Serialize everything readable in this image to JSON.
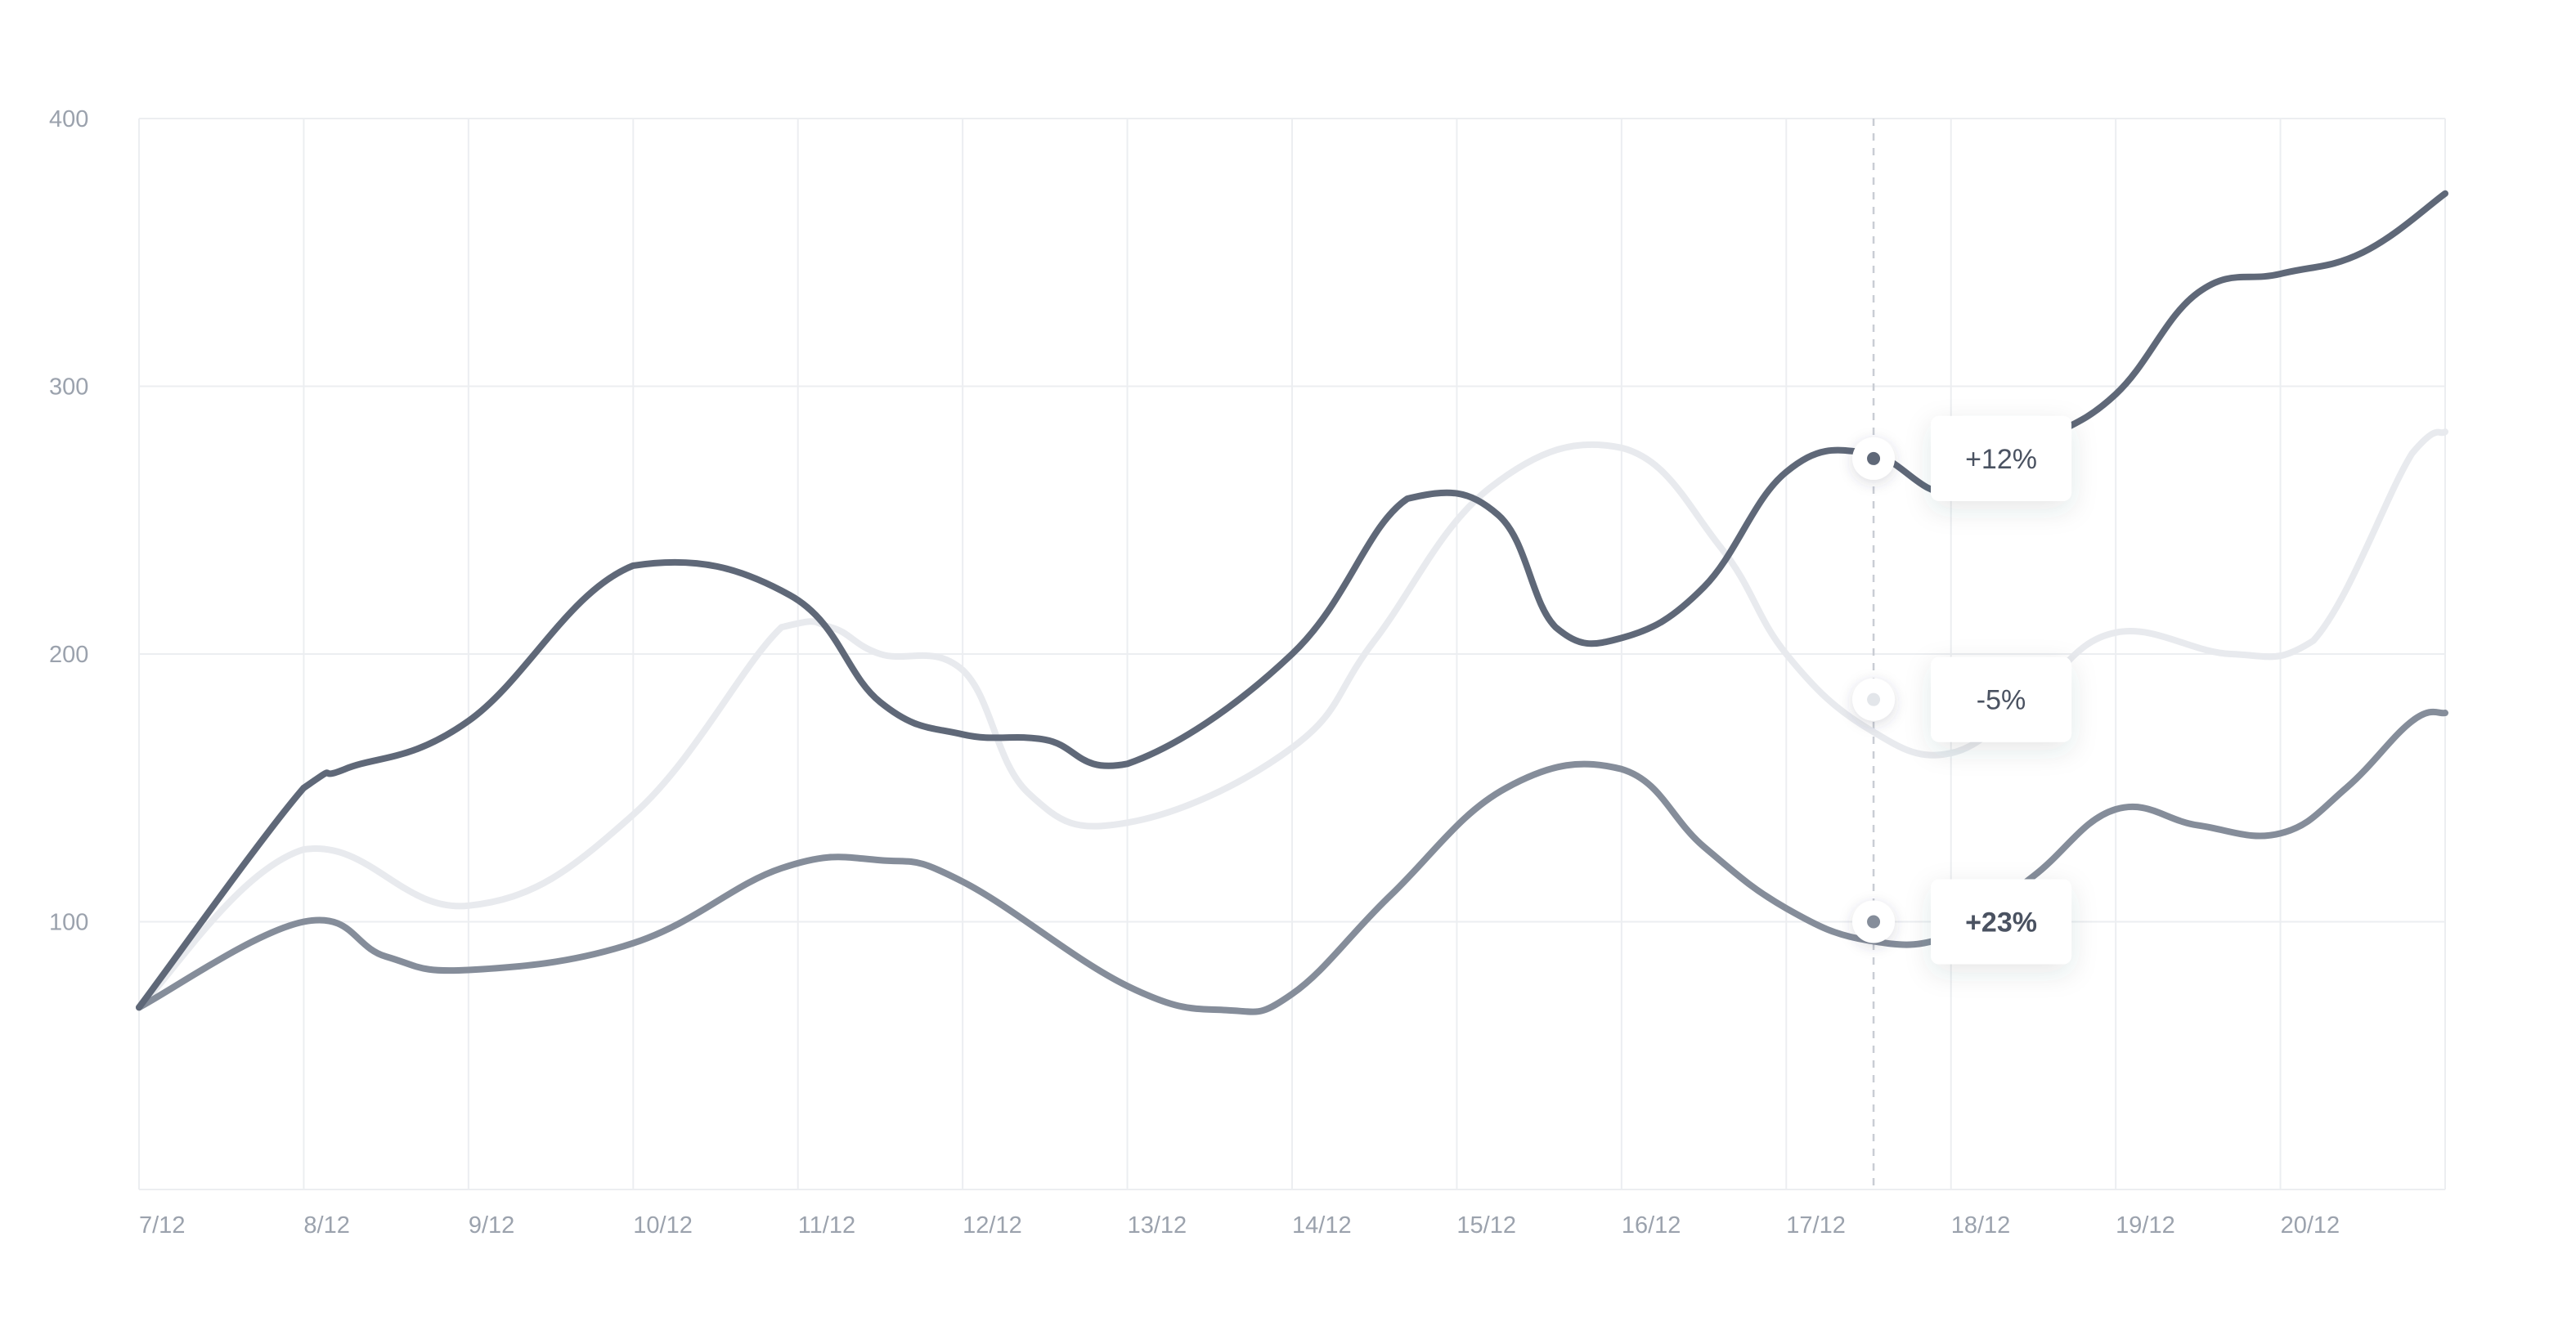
{
  "chart_data": {
    "type": "line",
    "title": "",
    "xlabel": "",
    "ylabel": "",
    "x": [
      "7/12",
      "8/12",
      "9/12",
      "10/12",
      "11/12",
      "12/12",
      "13/12",
      "14/12",
      "15/12",
      "16/12",
      "17/12",
      "18/12",
      "19/12",
      "20/12"
    ],
    "y_ticks": [
      100,
      200,
      300,
      400
    ],
    "ylim": [
      0,
      400
    ],
    "grid": true,
    "legend": "none",
    "series": [
      {
        "color": "#5f6878",
        "points": [
          [
            0,
            68
          ],
          [
            1,
            150
          ],
          [
            1.25,
            157
          ],
          [
            2,
            175
          ],
          [
            3,
            233
          ],
          [
            3.95,
            222
          ],
          [
            4.5,
            182
          ],
          [
            5,
            170
          ],
          [
            5.5,
            168
          ],
          [
            6,
            159
          ],
          [
            7,
            200
          ],
          [
            7.7,
            258
          ],
          [
            8.25,
            252
          ],
          [
            8.6,
            210
          ],
          [
            9,
            206
          ],
          [
            9.5,
            225
          ],
          [
            10,
            268
          ],
          [
            10.5,
            275
          ],
          [
            11,
            260
          ],
          [
            11.5,
            278
          ],
          [
            12,
            297
          ],
          [
            12.5,
            335
          ],
          [
            13,
            342
          ],
          [
            13.5,
            350
          ],
          [
            14,
            372
          ]
        ]
      },
      {
        "color": "#e8eaee",
        "points": [
          [
            0,
            68
          ],
          [
            1,
            127
          ],
          [
            2,
            106
          ],
          [
            3,
            140
          ],
          [
            3.9,
            210
          ],
          [
            4.2,
            210
          ],
          [
            4.5,
            200
          ],
          [
            5,
            194
          ],
          [
            5.4,
            148
          ],
          [
            6,
            137
          ],
          [
            7,
            165
          ],
          [
            7.5,
            205
          ],
          [
            8.2,
            262
          ],
          [
            9,
            277
          ],
          [
            9.6,
            240
          ],
          [
            10,
            200
          ],
          [
            10.5,
            172
          ],
          [
            11,
            163
          ],
          [
            11.5,
            185
          ],
          [
            12,
            208
          ],
          [
            12.7,
            200
          ],
          [
            13.2,
            205
          ],
          [
            13.8,
            275
          ],
          [
            14,
            283
          ]
        ]
      },
      {
        "color": "#858d9a",
        "points": [
          [
            0,
            68
          ],
          [
            1,
            100
          ],
          [
            1.5,
            87
          ],
          [
            2,
            82
          ],
          [
            3,
            92
          ],
          [
            3.9,
            120
          ],
          [
            4.5,
            123
          ],
          [
            5,
            115
          ],
          [
            6,
            76
          ],
          [
            6.6,
            67
          ],
          [
            7,
            73
          ],
          [
            7.6,
            110
          ],
          [
            8.3,
            150
          ],
          [
            9,
            157
          ],
          [
            9.5,
            128
          ],
          [
            10,
            105
          ],
          [
            10.5,
            93
          ],
          [
            11,
            95
          ],
          [
            11.5,
            117
          ],
          [
            12,
            142
          ],
          [
            12.5,
            136
          ],
          [
            13,
            133
          ],
          [
            13.4,
            150
          ],
          [
            13.8,
            175
          ],
          [
            14,
            178
          ]
        ]
      }
    ],
    "marker": {
      "x": 10.53,
      "callouts": [
        {
          "label": "+12%",
          "y": 273,
          "series": 0
        },
        {
          "label": "-5%",
          "y": 183,
          "series": 1
        },
        {
          "label": "+23%",
          "y": 100,
          "series": 2
        }
      ]
    }
  }
}
